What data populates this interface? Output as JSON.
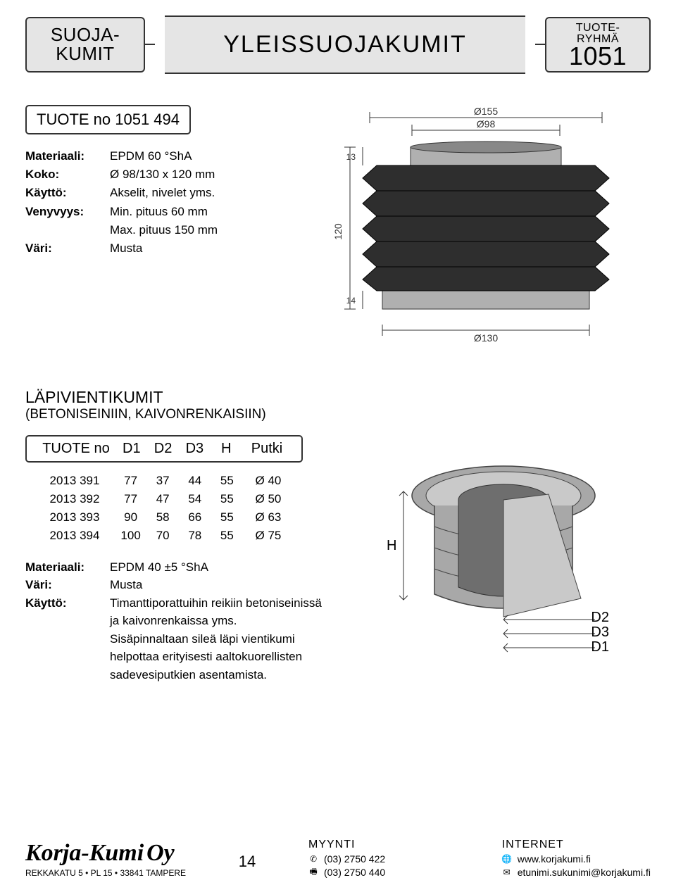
{
  "header": {
    "left_line1": "SUOJA-",
    "left_line2": "KUMIT",
    "title": "YLEISSUOJAKUMIT",
    "right_line1": "TUOTE-",
    "right_line2": "RYHMÄ",
    "right_num": "1051"
  },
  "product": {
    "no_label": "TUOTE no  1051 494",
    "specs": [
      {
        "k": "Materiaali:",
        "v": "EPDM 60 °ShA"
      },
      {
        "k": "Koko:",
        "v": "Ø 98/130 x 120 mm"
      },
      {
        "k": "Käyttö:",
        "v": "Akselit, nivelet yms."
      },
      {
        "k": "Venyvyys:",
        "v": "Min. pituus 60 mm"
      },
      {
        "k": "",
        "v": "Max. pituus 150 mm"
      },
      {
        "k": "Väri:",
        "v": "Musta"
      }
    ]
  },
  "top_diagram": {
    "d155": "Ø155",
    "d98": "Ø98",
    "d130": "Ø130",
    "h120": "120",
    "t13": "13",
    "t14": "14",
    "bg": "#d9d9d9",
    "body": "#2e2e2e",
    "flange": "#b0b0b0"
  },
  "section": {
    "title": "LÄPIVIENTIKUMIT",
    "sub": "(BETONISEINIIN, KAIVONRENKAISIIN)"
  },
  "table": {
    "headers": [
      "TUOTE no",
      "D1",
      "D2",
      "D3",
      "H",
      "Putki"
    ],
    "rows": [
      [
        "2013 391",
        "77",
        "37",
        "44",
        "55",
        "Ø 40"
      ],
      [
        "2013 392",
        "77",
        "47",
        "54",
        "55",
        "Ø 50"
      ],
      [
        "2013 393",
        "90",
        "58",
        "66",
        "55",
        "Ø 63"
      ],
      [
        "2013 394",
        "100",
        "70",
        "78",
        "55",
        "Ø 75"
      ]
    ]
  },
  "spec2": [
    {
      "k": "Materiaali:",
      "v": "EPDM  40  ±5 °ShA"
    },
    {
      "k": "Väri:",
      "v": "Musta"
    },
    {
      "k": "Käyttö:",
      "v": "Timanttiporattuihin reikiin betoniseinissä ja kaivonrenkaissa yms."
    },
    {
      "k": "",
      "v": "Sisäpinnaltaan sileä läpi vientikumi helpottaa erityisesti aaltokuorellisten sadevesiputkien asentamista."
    }
  ],
  "diag2": {
    "H": "H",
    "D1": "D1",
    "D2": "D2",
    "D3": "D3",
    "fill": "#a8a8a8",
    "cut": "#c9c9c9",
    "dark": "#6e6e6e"
  },
  "footer": {
    "brand": "Korja-Kumi",
    "oy": "Oy",
    "addr": "REKKAKATU 5  •  PL 15  •  33841 TAMPERE",
    "page": "14",
    "sales_h": "MYYNTI",
    "tel": "(03) 2750 422",
    "fax": "(03) 2750 440",
    "net_h": "INTERNET",
    "www": "www.korjakumi.fi",
    "mail": "etunimi.sukunimi@korjakumi.fi"
  }
}
